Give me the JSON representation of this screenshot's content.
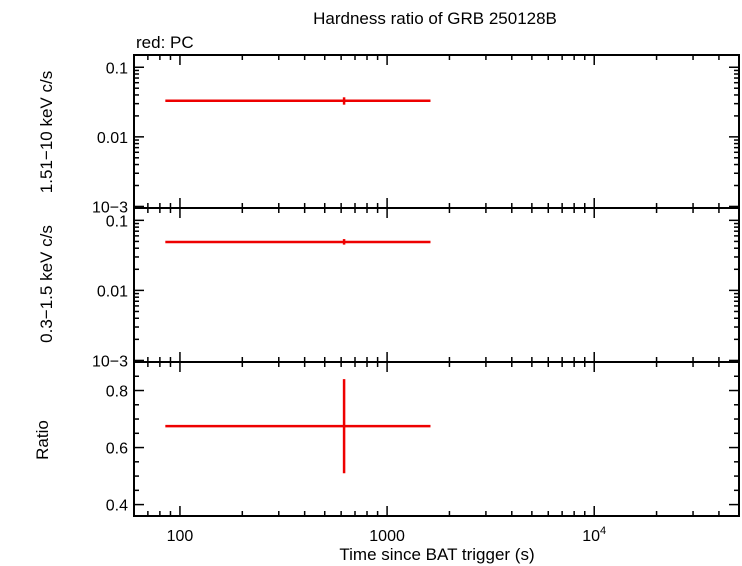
{
  "chart_data": [
    {
      "type": "scatter",
      "title": "Hardness ratio of GRB 250128B",
      "legend_text": "red: PC",
      "ylabel": "1.51−10 keV c/s",
      "xscale": "log",
      "yscale": "log",
      "xlim": [
        60,
        50000
      ],
      "ylim": [
        0.00095,
        0.15
      ],
      "yticks": [
        {
          "value": 0.1,
          "label": "0.1"
        },
        {
          "value": 0.01,
          "label": "0.01"
        },
        {
          "value": 0.001,
          "label": "10−3"
        }
      ],
      "series": [
        {
          "name": "PC",
          "color": "#ee0000",
          "points": [
            {
              "x": 620,
              "xlo": 85,
              "xhi": 1620,
              "y": 0.033,
              "ylo": 0.029,
              "yhi": 0.037
            }
          ]
        }
      ]
    },
    {
      "type": "scatter",
      "ylabel": "0.3−1.5 keV c/s",
      "xscale": "log",
      "yscale": "log",
      "xlim": [
        60,
        50000
      ],
      "ylim": [
        0.00095,
        0.15
      ],
      "yticks": [
        {
          "value": 0.1,
          "label": "0.1"
        },
        {
          "value": 0.01,
          "label": "0.01"
        },
        {
          "value": 0.001,
          "label": "10−3"
        }
      ],
      "series": [
        {
          "name": "PC",
          "color": "#ee0000",
          "points": [
            {
              "x": 620,
              "xlo": 85,
              "xhi": 1620,
              "y": 0.049,
              "ylo": 0.045,
              "yhi": 0.054
            }
          ]
        }
      ]
    },
    {
      "type": "scatter",
      "ylabel": "Ratio",
      "xlabel": "Time since BAT trigger (s)",
      "xscale": "log",
      "yscale": "linear",
      "xlim": [
        60,
        50000
      ],
      "ylim": [
        0.36,
        0.9
      ],
      "yticks": [
        {
          "value": 0.8,
          "label": "0.8"
        },
        {
          "value": 0.6,
          "label": "0.6"
        },
        {
          "value": 0.4,
          "label": "0.4"
        }
      ],
      "xticks": [
        {
          "value": 100,
          "label": "100"
        },
        {
          "value": 1000,
          "label": "1000"
        },
        {
          "value": 10000,
          "label": "10",
          "sup": "4"
        }
      ],
      "series": [
        {
          "name": "PC",
          "color": "#ee0000",
          "points": [
            {
              "x": 620,
              "xlo": 85,
              "xhi": 1620,
              "y": 0.675,
              "ylo": 0.51,
              "yhi": 0.84
            }
          ]
        }
      ]
    }
  ]
}
